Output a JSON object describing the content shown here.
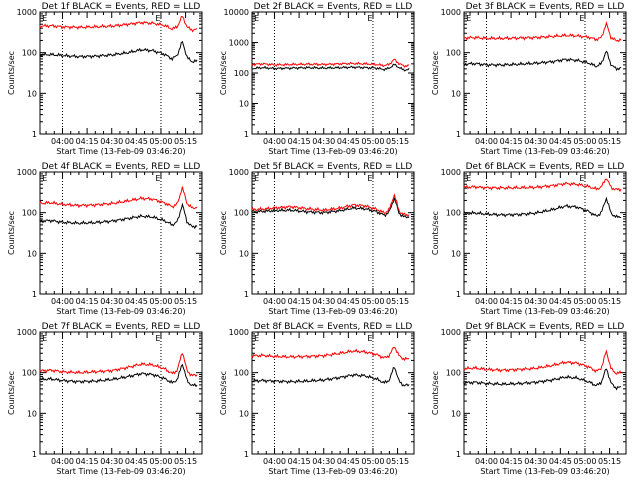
{
  "chart_data": [
    {
      "type": "line",
      "title": "Det 1f BLACK = Events, RED = LLD",
      "xlabel": "Start Time (13-Feb-09 03:46:20)",
      "ylabel": "Counts/sec",
      "yscale": "log",
      "ylim": [
        1,
        1000
      ],
      "yticks": [
        "1",
        "10",
        "100",
        "1000"
      ],
      "xticks": [
        "04:00",
        "04:15",
        "04:30",
        "04:45",
        "05:00",
        "05:15"
      ],
      "markers": [
        "E",
        "E"
      ],
      "series": [
        {
          "color": "#000000",
          "kind": "events",
          "x": [
            "03:46",
            "03:53",
            "04:00",
            "04:10",
            "04:20",
            "04:30",
            "04:40",
            "04:48",
            "04:55",
            "05:02",
            "05:07",
            "05:10",
            "05:13",
            "05:16",
            "05:19",
            "05:22"
          ],
          "y": [
            88,
            90,
            85,
            80,
            82,
            88,
            100,
            118,
            112,
            92,
            70,
            88,
            190,
            75,
            60,
            62
          ]
        },
        {
          "color": "#ff0000",
          "kind": "lld",
          "x": [
            "03:46",
            "03:53",
            "04:00",
            "04:10",
            "04:20",
            "04:30",
            "04:40",
            "04:48",
            "04:55",
            "05:02",
            "05:07",
            "05:10",
            "05:13",
            "05:16",
            "05:19",
            "05:22"
          ],
          "y": [
            450,
            460,
            430,
            420,
            430,
            450,
            500,
            550,
            530,
            470,
            380,
            440,
            800,
            420,
            360,
            370
          ]
        }
      ]
    },
    {
      "type": "line",
      "title": "Det 2f BLACK = Events, RED = LLD",
      "xlabel": "Start Time (13-Feb-09 03:46:20)",
      "ylabel": "Counts/sec",
      "yscale": "log",
      "ylim": [
        1,
        10000
      ],
      "yticks": [
        "1",
        "10",
        "100",
        "1000",
        "10000"
      ],
      "xticks": [
        "04:00",
        "04:15",
        "04:30",
        "04:45",
        "05:00",
        "05:15"
      ],
      "markers": [
        "E",
        "E"
      ],
      "series": [
        {
          "color": "#000000",
          "kind": "events",
          "x": [
            "03:46",
            "03:53",
            "04:00",
            "04:10",
            "04:20",
            "04:30",
            "04:40",
            "04:48",
            "04:55",
            "05:02",
            "05:07",
            "05:10",
            "05:13",
            "05:16",
            "05:19",
            "05:22"
          ],
          "y": [
            140,
            150,
            140,
            145,
            150,
            145,
            150,
            155,
            150,
            145,
            130,
            145,
            190,
            150,
            125,
            130
          ]
        },
        {
          "color": "#ff0000",
          "kind": "lld",
          "x": [
            "03:46",
            "03:53",
            "04:00",
            "04:10",
            "04:20",
            "04:30",
            "04:40",
            "04:48",
            "04:55",
            "05:02",
            "05:07",
            "05:10",
            "05:13",
            "05:16",
            "05:19",
            "05:22"
          ],
          "y": [
            190,
            200,
            185,
            190,
            195,
            190,
            200,
            205,
            200,
            190,
            175,
            195,
            280,
            200,
            170,
            175
          ]
        }
      ]
    },
    {
      "type": "line",
      "title": "Det 3f BLACK = Events, RED = LLD",
      "xlabel": "Start Time (13-Feb-09 03:46:20)",
      "ylabel": "Counts/sec",
      "yscale": "log",
      "ylim": [
        1,
        1000
      ],
      "yticks": [
        "1",
        "10",
        "100",
        "1000"
      ],
      "xticks": [
        "04:00",
        "04:15",
        "04:30",
        "04:45",
        "05:00",
        "05:15"
      ],
      "markers": [
        "E",
        "E"
      ],
      "series": [
        {
          "color": "#000000",
          "kind": "events",
          "x": [
            "03:46",
            "03:53",
            "04:00",
            "04:10",
            "04:20",
            "04:30",
            "04:40",
            "04:48",
            "04:55",
            "05:02",
            "05:07",
            "05:10",
            "05:13",
            "05:16",
            "05:19",
            "05:22"
          ],
          "y": [
            52,
            54,
            50,
            50,
            52,
            55,
            60,
            68,
            65,
            56,
            46,
            54,
            110,
            50,
            40,
            42
          ]
        },
        {
          "color": "#ff0000",
          "kind": "lld",
          "x": [
            "03:46",
            "03:53",
            "04:00",
            "04:10",
            "04:20",
            "04:30",
            "04:40",
            "04:48",
            "04:55",
            "05:02",
            "05:07",
            "05:10",
            "05:13",
            "05:16",
            "05:19",
            "05:22"
          ],
          "y": [
            230,
            235,
            225,
            225,
            230,
            235,
            250,
            265,
            260,
            240,
            210,
            235,
            520,
            230,
            200,
            205
          ]
        }
      ]
    },
    {
      "type": "line",
      "title": "Det 4f BLACK = Events, RED = LLD",
      "xlabel": "Start Time (13-Feb-09 03:46:20)",
      "ylabel": "Counts/sec",
      "yscale": "log",
      "ylim": [
        1,
        1000
      ],
      "yticks": [
        "1",
        "10",
        "100",
        "1000"
      ],
      "xticks": [
        "04:00",
        "04:15",
        "04:30",
        "04:45",
        "05:00",
        "05:15"
      ],
      "markers": [
        "E",
        "E"
      ],
      "series": [
        {
          "color": "#000000",
          "kind": "events",
          "x": [
            "03:46",
            "03:53",
            "04:00",
            "04:10",
            "04:20",
            "04:30",
            "04:40",
            "04:48",
            "04:55",
            "05:02",
            "05:07",
            "05:10",
            "05:13",
            "05:16",
            "05:19",
            "05:22"
          ],
          "y": [
            62,
            64,
            58,
            55,
            57,
            62,
            72,
            82,
            78,
            64,
            50,
            60,
            160,
            58,
            45,
            47
          ]
        },
        {
          "color": "#ff0000",
          "kind": "lld",
          "x": [
            "03:46",
            "03:53",
            "04:00",
            "04:10",
            "04:20",
            "04:30",
            "04:40",
            "04:48",
            "04:55",
            "05:02",
            "05:07",
            "05:10",
            "05:13",
            "05:16",
            "05:19",
            "05:22"
          ],
          "y": [
            170,
            175,
            160,
            150,
            155,
            168,
            195,
            225,
            215,
            175,
            140,
            165,
            420,
            165,
            130,
            135
          ]
        }
      ]
    },
    {
      "type": "line",
      "title": "Det 5f BLACK = Events, RED = LLD",
      "xlabel": "Start Time (13-Feb-09 03:46:20)",
      "ylabel": "Counts/sec",
      "yscale": "log",
      "ylim": [
        1,
        1000
      ],
      "yticks": [
        "1",
        "10",
        "100",
        "1000"
      ],
      "xticks": [
        "04:00",
        "04:15",
        "04:30",
        "04:45",
        "05:00",
        "05:15"
      ],
      "markers": [
        "E",
        "E"
      ],
      "series": [
        {
          "color": "#000000",
          "kind": "events",
          "x": [
            "03:46",
            "03:53",
            "04:00",
            "04:10",
            "04:20",
            "04:30",
            "04:40",
            "04:48",
            "04:55",
            "05:02",
            "05:07",
            "05:10",
            "05:13",
            "05:16",
            "05:19",
            "05:22"
          ],
          "y": [
            105,
            108,
            112,
            115,
            105,
            100,
            112,
            130,
            125,
            106,
            86,
            105,
            230,
            95,
            78,
            80
          ]
        },
        {
          "color": "#ff0000",
          "kind": "lld",
          "x": [
            "03:46",
            "03:53",
            "04:00",
            "04:10",
            "04:20",
            "04:30",
            "04:40",
            "04:48",
            "04:55",
            "05:02",
            "05:07",
            "05:10",
            "05:13",
            "05:16",
            "05:19",
            "05:22"
          ],
          "y": [
            118,
            122,
            130,
            140,
            125,
            115,
            130,
            155,
            148,
            122,
            98,
            120,
            280,
            108,
            88,
            90
          ]
        }
      ]
    },
    {
      "type": "line",
      "title": "Det 6f BLACK = Events, RED = LLD",
      "xlabel": "Start Time (13-Feb-09 03:46:20)",
      "ylabel": "Counts/sec",
      "yscale": "log",
      "ylim": [
        1,
        1000
      ],
      "yticks": [
        "1",
        "10",
        "100",
        "1000"
      ],
      "xticks": [
        "04:00",
        "04:15",
        "04:30",
        "04:45",
        "05:00",
        "05:15"
      ],
      "markers": [
        "E",
        "E"
      ],
      "series": [
        {
          "color": "#000000",
          "kind": "events",
          "x": [
            "03:46",
            "03:53",
            "04:00",
            "04:10",
            "04:20",
            "04:30",
            "04:40",
            "04:48",
            "04:55",
            "05:02",
            "05:07",
            "05:10",
            "05:13",
            "05:16",
            "05:19",
            "05:22"
          ],
          "y": [
            95,
            98,
            92,
            88,
            90,
            98,
            118,
            145,
            138,
            108,
            82,
            100,
            230,
            95,
            78,
            80
          ]
        },
        {
          "color": "#ff0000",
          "kind": "lld",
          "x": [
            "03:46",
            "03:53",
            "04:00",
            "04:10",
            "04:20",
            "04:30",
            "04:40",
            "04:48",
            "04:55",
            "05:02",
            "05:07",
            "05:10",
            "05:13",
            "05:16",
            "05:19",
            "05:22"
          ],
          "y": [
            420,
            430,
            410,
            405,
            410,
            420,
            460,
            520,
            500,
            440,
            380,
            430,
            720,
            410,
            370,
            375
          ]
        }
      ]
    },
    {
      "type": "line",
      "title": "Det 7f BLACK = Events, RED = LLD",
      "xlabel": "Start Time (13-Feb-09 03:46:20)",
      "ylabel": "Counts/sec",
      "yscale": "log",
      "ylim": [
        1,
        1000
      ],
      "yticks": [
        "1",
        "10",
        "100",
        "1000"
      ],
      "xticks": [
        "04:00",
        "04:15",
        "04:30",
        "04:45",
        "05:00",
        "05:15"
      ],
      "markers": [
        "E",
        "E"
      ],
      "series": [
        {
          "color": "#000000",
          "kind": "events",
          "x": [
            "03:46",
            "03:53",
            "04:00",
            "04:10",
            "04:20",
            "04:30",
            "04:40",
            "04:48",
            "04:55",
            "05:02",
            "05:07",
            "05:10",
            "05:13",
            "05:16",
            "05:19",
            "05:22"
          ],
          "y": [
            68,
            70,
            64,
            60,
            62,
            68,
            80,
            95,
            90,
            72,
            56,
            68,
            170,
            62,
            48,
            50
          ]
        },
        {
          "color": "#ff0000",
          "kind": "lld",
          "x": [
            "03:46",
            "03:53",
            "04:00",
            "04:10",
            "04:20",
            "04:30",
            "04:40",
            "04:48",
            "04:55",
            "05:02",
            "05:07",
            "05:10",
            "05:13",
            "05:16",
            "05:19",
            "05:22"
          ],
          "y": [
            110,
            115,
            105,
            100,
            105,
            112,
            135,
            162,
            155,
            125,
            95,
            115,
            330,
            108,
            85,
            88
          ]
        }
      ]
    },
    {
      "type": "line",
      "title": "Det 8f BLACK = Events, RED = LLD",
      "xlabel": "Start Time (13-Feb-09 03:46:20)",
      "ylabel": "Counts/sec",
      "yscale": "log",
      "ylim": [
        1,
        1000
      ],
      "yticks": [
        "1",
        "10",
        "100",
        "1000"
      ],
      "xticks": [
        "04:00",
        "04:15",
        "04:30",
        "04:45",
        "05:00",
        "05:15"
      ],
      "markers": [
        "E",
        "E"
      ],
      "series": [
        {
          "color": "#000000",
          "kind": "events",
          "x": [
            "03:46",
            "03:53",
            "04:00",
            "04:10",
            "04:20",
            "04:30",
            "04:40",
            "04:48",
            "04:55",
            "05:02",
            "05:07",
            "05:10",
            "05:13",
            "05:16",
            "05:19",
            "05:22"
          ],
          "y": [
            62,
            64,
            62,
            60,
            62,
            66,
            76,
            88,
            84,
            70,
            56,
            66,
            145,
            60,
            48,
            50
          ]
        },
        {
          "color": "#ff0000",
          "kind": "lld",
          "x": [
            "03:46",
            "03:53",
            "04:00",
            "04:10",
            "04:20",
            "04:30",
            "04:40",
            "04:48",
            "04:55",
            "05:02",
            "05:07",
            "05:10",
            "05:13",
            "05:16",
            "05:19",
            "05:22"
          ],
          "y": [
            260,
            265,
            250,
            245,
            250,
            262,
            300,
            340,
            325,
            280,
            230,
            265,
            450,
            255,
            215,
            220
          ]
        }
      ]
    },
    {
      "type": "line",
      "title": "Det 9f BLACK = Events, RED = LLD",
      "xlabel": "Start Time (13-Feb-09 03:46:20)",
      "ylabel": "Counts/sec",
      "yscale": "log",
      "ylim": [
        1,
        1000
      ],
      "yticks": [
        "1",
        "10",
        "100",
        "1000"
      ],
      "xticks": [
        "04:00",
        "04:15",
        "04:30",
        "04:45",
        "05:00",
        "05:15"
      ],
      "markers": [
        "E",
        "E"
      ],
      "series": [
        {
          "color": "#000000",
          "kind": "events",
          "x": [
            "03:46",
            "03:53",
            "04:00",
            "04:10",
            "04:20",
            "04:30",
            "04:40",
            "04:48",
            "04:55",
            "05:02",
            "05:07",
            "05:10",
            "05:13",
            "05:16",
            "05:19",
            "05:22"
          ],
          "y": [
            56,
            58,
            54,
            52,
            54,
            58,
            66,
            78,
            74,
            60,
            48,
            58,
            130,
            54,
            42,
            44
          ]
        },
        {
          "color": "#ff0000",
          "kind": "lld",
          "x": [
            "03:46",
            "03:53",
            "04:00",
            "04:10",
            "04:20",
            "04:30",
            "04:40",
            "04:48",
            "04:55",
            "05:02",
            "05:07",
            "05:10",
            "05:13",
            "05:16",
            "05:19",
            "05:22"
          ],
          "y": [
            125,
            130,
            120,
            115,
            120,
            128,
            150,
            180,
            172,
            140,
            108,
            130,
            340,
            122,
            96,
            100
          ]
        }
      ]
    }
  ]
}
